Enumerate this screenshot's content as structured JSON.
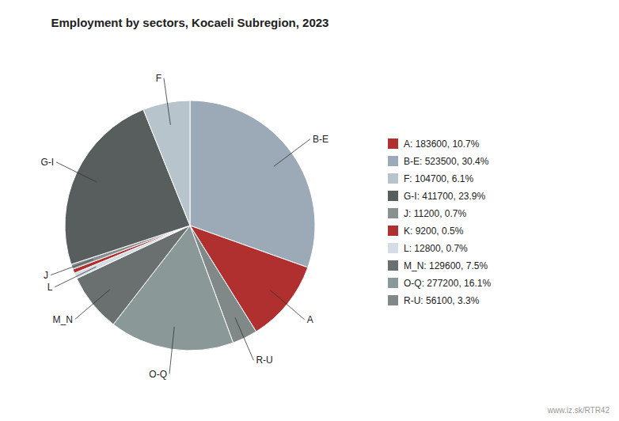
{
  "chart_data": {
    "type": "pie",
    "title": "Employment by sectors, Kocaeli Subregion, 2023",
    "categories": [
      "B-E",
      "A",
      "R-U",
      "O-Q",
      "M_N",
      "L",
      null,
      "J",
      "G-I",
      "F"
    ],
    "values": [
      523500,
      183600,
      56100,
      277200,
      129600,
      12800,
      9200,
      11200,
      411700,
      104700
    ],
    "colors": [
      "#9caab8",
      "#b03030",
      "#808888",
      "#8a9898",
      "#6a7070",
      "#d4dce4",
      "#b03030",
      "#8a9090",
      "#585e5e",
      "#b8c4cc"
    ],
    "legend_entries": [
      {
        "label": "A: 183600, 10.7%",
        "color": "#b03030"
      },
      {
        "label": "B-E: 523500, 30.4%",
        "color": "#9caab8"
      },
      {
        "label": "F: 104700, 6.1%",
        "color": "#b8c4cc"
      },
      {
        "label": "G-I: 411700, 23.9%",
        "color": "#585e5e"
      },
      {
        "label": "J: 11200, 0.7%",
        "color": "#8a9090"
      },
      {
        "label": "K: 9200, 0.5%",
        "color": "#b03030"
      },
      {
        "label": "L: 12800, 0.7%",
        "color": "#d4dce4"
      },
      {
        "label": "M_N: 129600, 7.5%",
        "color": "#6a7070"
      },
      {
        "label": "O-Q: 277200, 16.1%",
        "color": "#8a9898"
      },
      {
        "label": "R-U: 56100, 3.3%",
        "color": "#808888"
      }
    ],
    "annotations": [
      "www.iz.sk/RTR42"
    ]
  }
}
